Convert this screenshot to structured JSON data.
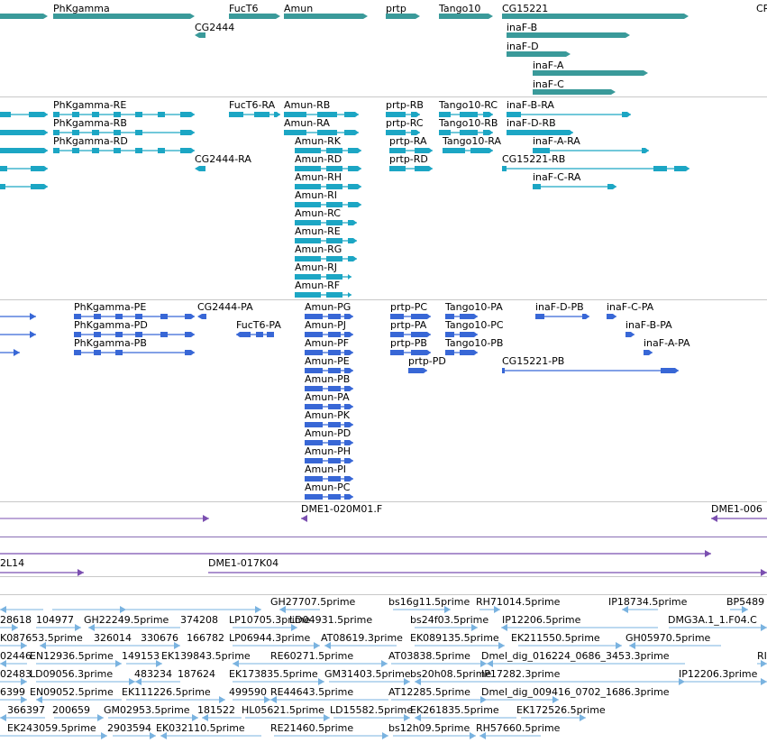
{
  "colors": {
    "gene": "#3a9a9a",
    "transcript": "#1ca6c4",
    "protein": "#3867d6",
    "clone": "#7b4fb0",
    "est": "#7ab3e0",
    "divider": "#c8c8c8"
  },
  "tracks": {
    "gene": {
      "labels": [
        "PhKgamma",
        "FucT6",
        "Amun",
        "prtp",
        "Tango10",
        "CG15221",
        "CR",
        "CG2444",
        "inaF-B",
        "inaF-D",
        "inaF-A",
        "inaF-C"
      ]
    },
    "transcript": {
      "labels": [
        "PhKgamma-RE",
        "PhKgamma-RB",
        "PhKgamma-RD",
        "FucT6-RA",
        "CG2444-RA",
        "Amun-RB",
        "Amun-RA",
        "Amun-RK",
        "Amun-RD",
        "Amun-RH",
        "Amun-RI",
        "Amun-RC",
        "Amun-RE",
        "Amun-RG",
        "Amun-RJ",
        "Amun-RF",
        "prtp-RB",
        "prtp-RC",
        "prtp-RA",
        "prtp-RD",
        "Tango10-RC",
        "Tango10-RB",
        "Tango10-RA",
        "inaF-B-RA",
        "inaF-D-RB",
        "inaF-A-RA",
        "CG15221-RB",
        "inaF-C-RA"
      ]
    },
    "protein": {
      "labels": [
        "PhKgamma-PE",
        "PhKgamma-PD",
        "PhKgamma-PB",
        "CG2444-PA",
        "FucT6-PA",
        "Amun-PG",
        "Amun-PJ",
        "Amun-PF",
        "Amun-PE",
        "Amun-PB",
        "Amun-PA",
        "Amun-PK",
        "Amun-PD",
        "Amun-PH",
        "Amun-PI",
        "Amun-PC",
        "prtp-PC",
        "prtp-PA",
        "prtp-PB",
        "prtp-PD",
        "Tango10-PA",
        "Tango10-PC",
        "Tango10-PB",
        "inaF-D-PB",
        "inaF-C-PA",
        "inaF-B-PA",
        "inaF-A-PA",
        "CG15221-PB"
      ]
    },
    "clone": {
      "labels": [
        "DME1-020M01.F",
        "DME1-006",
        "2L14",
        "DME1-017K04"
      ]
    },
    "est": {
      "labels": [
        "GH27707.5prime",
        "bs16g11.5prime",
        "RH71014.5prime",
        "IP18734.5prime",
        "BP5489",
        "28618",
        "104977",
        "GH22249.5prime",
        "374208",
        "LP10705.3prime",
        "LD04931.5prime",
        "bs24f03.5prime",
        "IP12206.5prime",
        "DMG3A.1_1.F04.C",
        "K087653.5prime",
        "326014",
        "330676",
        "166782",
        "LP06944.3prime",
        "AT08619.3prime",
        "EK089135.5prime",
        "EK211550.5prime",
        "GH05970.5prime",
        "02446",
        "EN12936.5prime",
        "149153",
        "EK139843.5prime",
        "RE60271.5prime",
        "AT03838.5prime",
        "Dmel_dig_016224_0686_3453.3prime",
        "RI",
        "02483",
        "LD09056.3prime",
        "483234",
        "187624",
        "EK173835.5prime",
        "GM31403.5prime",
        "bs20h08.5prime",
        "IP17282.3prime",
        "IP12206.3prime",
        "6399",
        "EN09052.5prime",
        "EK111226.5prime",
        "499590",
        "RE44643.5prime",
        "AT12285.5prime",
        "Dmel_dig_009416_0702_1686.3prime",
        "366397",
        "200659",
        "GM02953.5prime",
        "181522",
        "HL05621.5prime",
        "LD15582.5prime",
        "EK261835.5prime",
        "EK172526.5prime",
        "EK243059.5prime",
        "2903594",
        "EK032110.5prime",
        "RE21460.5prime",
        "bs12h09.5prime",
        "RH57660.5prime"
      ]
    }
  }
}
